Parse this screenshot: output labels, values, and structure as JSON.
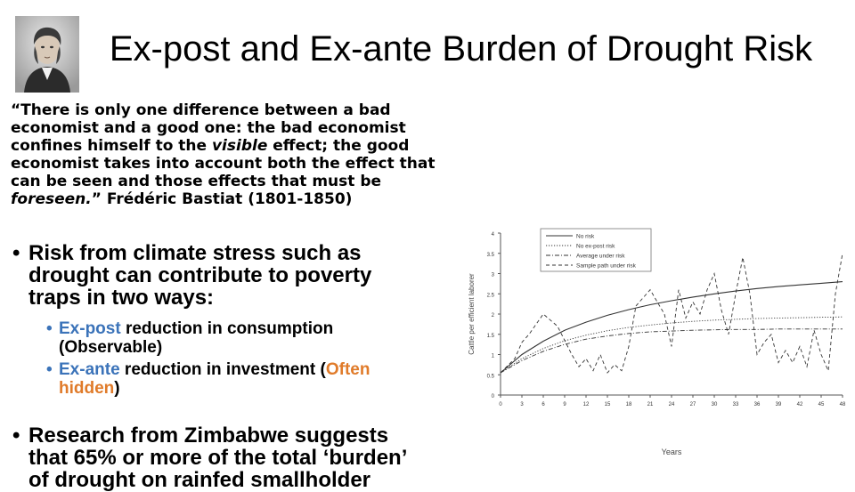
{
  "slide": {
    "title": "Ex-post and Ex-ante Burden of Drought Risk",
    "portrait_name": "Frédéric Bastiat portrait",
    "quote": {
      "line1": "“There is only one difference between a bad",
      "line2": "economist and a good one: the bad economist",
      "line3a": "confines himself to the ",
      "line3b": "visible",
      "line3c": " effect; the good",
      "line4": "economist takes into account both the effect that",
      "line5": "can be seen and those effects that must be",
      "line6a": "foreseen.",
      "line6b": "” Frédéric Bastiat (1801-1850)"
    },
    "bullet1": {
      "line1": "Risk from climate stress such as",
      "line2": "drought can contribute to poverty",
      "line3": "traps in two ways:"
    },
    "sub1": {
      "accent": "Ex-post",
      "rest": " reduction in consumption",
      "line2": "(Observable)"
    },
    "sub2": {
      "accent": "Ex-ante",
      "rest": " reduction in investment (",
      "orange1": "Often",
      "orange2": "hidden",
      "close": ")"
    },
    "bullet2": {
      "line1": "Research from Zimbabwe suggests",
      "line2": "that 65% or more of the total ‘burden’",
      "line3": "of drought on rainfed smallholder"
    }
  },
  "chart_data": {
    "type": "line",
    "xlabel": "Years",
    "ylabel": "Cattle per efficient laborer",
    "xlim": [
      0,
      48
    ],
    "ylim": [
      0,
      4
    ],
    "xticks": [
      "0",
      "3",
      "6",
      "9",
      "12",
      "15",
      "18",
      "21",
      "24",
      "27",
      "30",
      "33",
      "36",
      "39",
      "42",
      "45",
      "48"
    ],
    "yticks": [
      "0",
      "0.5",
      "1",
      "1.5",
      "2",
      "2.5",
      "3",
      "3.5",
      "4"
    ],
    "legend_position": "top",
    "series": [
      {
        "name": "No risk",
        "style": "solid",
        "x": [
          0,
          3,
          6,
          9,
          12,
          15,
          18,
          21,
          24,
          27,
          30,
          33,
          36,
          39,
          42,
          45,
          48
        ],
        "y": [
          0.55,
          1.0,
          1.33,
          1.6,
          1.8,
          1.97,
          2.11,
          2.23,
          2.33,
          2.42,
          2.5,
          2.57,
          2.63,
          2.68,
          2.72,
          2.76,
          2.8
        ]
      },
      {
        "name": "No ex-post risk",
        "style": "dotted",
        "x": [
          0,
          3,
          6,
          9,
          12,
          15,
          18,
          21,
          24,
          27,
          30,
          33,
          36,
          39,
          42,
          45,
          48
        ],
        "y": [
          0.55,
          0.9,
          1.15,
          1.34,
          1.48,
          1.59,
          1.67,
          1.73,
          1.78,
          1.82,
          1.85,
          1.87,
          1.89,
          1.9,
          1.91,
          1.92,
          1.93
        ]
      },
      {
        "name": "Average under risk",
        "style": "dashdot",
        "x": [
          0,
          3,
          6,
          9,
          12,
          15,
          18,
          21,
          24,
          27,
          30,
          33,
          36,
          39,
          42,
          45,
          48
        ],
        "y": [
          0.55,
          0.85,
          1.08,
          1.25,
          1.38,
          1.46,
          1.52,
          1.56,
          1.58,
          1.6,
          1.61,
          1.62,
          1.62,
          1.63,
          1.63,
          1.63,
          1.63
        ]
      },
      {
        "name": "Sample path under risk",
        "style": "dashed",
        "x": [
          0,
          2,
          3,
          4,
          6,
          8,
          10,
          11,
          12,
          13,
          14,
          15,
          16,
          17,
          18,
          19,
          20,
          21,
          22,
          23,
          24,
          25,
          26,
          27,
          28,
          29,
          30,
          31,
          32,
          33,
          34,
          35,
          36,
          37,
          38,
          39,
          40,
          41,
          42,
          43,
          44,
          45,
          46,
          47,
          48
        ],
        "y": [
          0.55,
          0.9,
          1.3,
          1.5,
          2.0,
          1.7,
          1.0,
          0.7,
          0.9,
          0.6,
          1.0,
          0.55,
          0.75,
          0.6,
          1.2,
          2.2,
          2.4,
          2.6,
          2.3,
          2.0,
          1.2,
          2.6,
          1.9,
          2.3,
          2.0,
          2.6,
          3.0,
          2.1,
          1.5,
          2.5,
          3.4,
          2.5,
          1.0,
          1.3,
          1.5,
          0.8,
          1.1,
          0.8,
          1.2,
          0.7,
          1.6,
          1.0,
          0.6,
          2.5,
          3.5
        ]
      }
    ]
  }
}
